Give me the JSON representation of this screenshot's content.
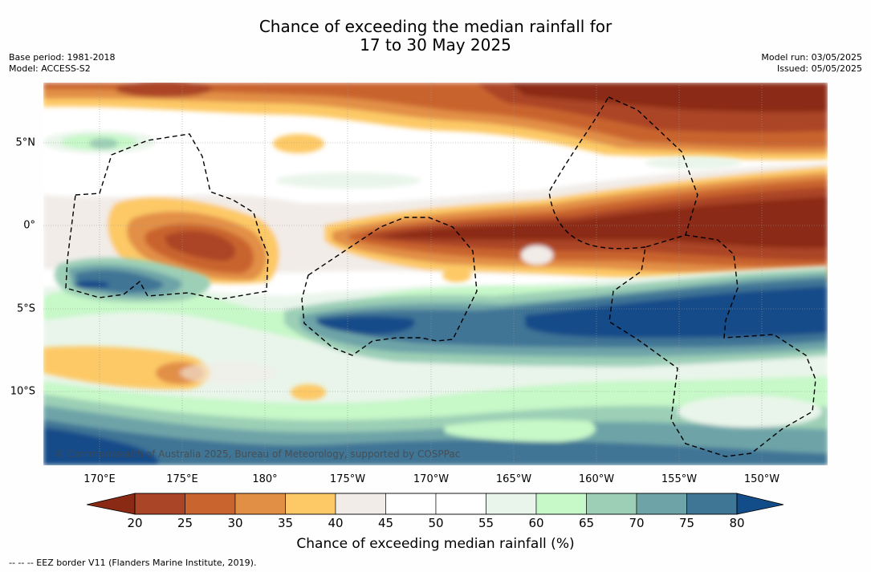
{
  "title": {
    "line1": "Chance of exceeding the median rainfall for",
    "line2": "17 to 30 May 2025"
  },
  "meta": {
    "base_period": "Base period: 1981-2018",
    "model": "Model: ACCESS-S2",
    "model_run": "Model run: 03/05/2025",
    "issued": "Issued: 05/05/2025"
  },
  "map": {
    "lat_labels": [
      "5°N",
      "0°",
      "5°S",
      "10°S"
    ],
    "lon_labels": [
      "170°E",
      "175°E",
      "180°",
      "175°W",
      "170°W",
      "165°W",
      "160°W",
      "155°W",
      "150°W"
    ],
    "credit": "© Commonwealth of Australia 2025, Bureau of Meteorology, supported by COSPPac",
    "background_color": "#ffffff"
  },
  "colorbar": {
    "levels": [
      20,
      25,
      30,
      35,
      40,
      45,
      50,
      55,
      60,
      65,
      70,
      75,
      80
    ],
    "tick_labels": [
      "20",
      "25",
      "30",
      "35",
      "40",
      "45",
      "50",
      "55",
      "60",
      "65",
      "70",
      "75",
      "80"
    ],
    "under_color": "#8b2a14",
    "over_color": "#124c89",
    "colors": [
      "#ab4528",
      "#c9642f",
      "#e28f46",
      "#fdc966",
      "#f1ece8",
      "#ffffff",
      "#ffffff",
      "#e9f5ea",
      "#c6f8c8",
      "#9ccfb6",
      "#6ea4a8",
      "#3f7595"
    ],
    "title": "Chance of exceeding median rainfall (%)"
  },
  "footnote": "--  --  -- EEZ border V11 (Flanders Marine Institute, 2019)."
}
